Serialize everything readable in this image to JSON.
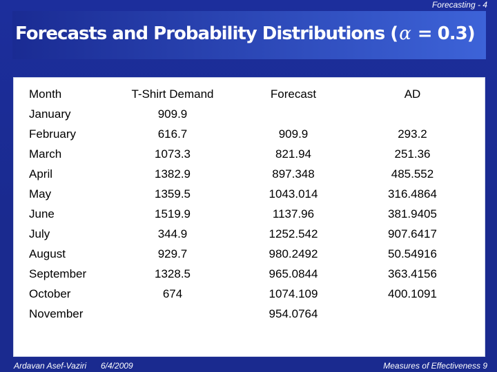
{
  "header": {
    "chapter": "Forecasting - 4",
    "title_prefix": "Forecasts and Probability Distributions (",
    "title_alpha": "α",
    "title_suffix": " = 0.3)"
  },
  "table": {
    "columns": [
      "Month",
      "T-Shirt Demand",
      "Forecast",
      "AD"
    ],
    "rows": [
      [
        "January",
        "909.9",
        "",
        ""
      ],
      [
        "February",
        "616.7",
        "909.9",
        "293.2"
      ],
      [
        "March",
        "1073.3",
        "821.94",
        "251.36"
      ],
      [
        "April",
        "1382.9",
        "897.348",
        "485.552"
      ],
      [
        "May",
        "1359.5",
        "1043.014",
        "316.4864"
      ],
      [
        "June",
        "1519.9",
        "1137.96",
        "381.9405"
      ],
      [
        "July",
        "344.9",
        "1252.542",
        "907.6417"
      ],
      [
        "August",
        "929.7",
        "980.2492",
        "50.54916"
      ],
      [
        "September",
        "1328.5",
        "965.0844",
        "363.4156"
      ],
      [
        "October",
        "674",
        "1074.109",
        "400.1091"
      ],
      [
        "November",
        "",
        "954.0764",
        ""
      ]
    ]
  },
  "footer": {
    "author": "Ardavan Asef-Vaziri",
    "date": "6/4/2009",
    "section": "Measures of Effectiveness 9"
  },
  "colors": {
    "background": "#1a2a8f",
    "title_gradient_end": "#3d63d8",
    "panel": "#ffffff"
  }
}
